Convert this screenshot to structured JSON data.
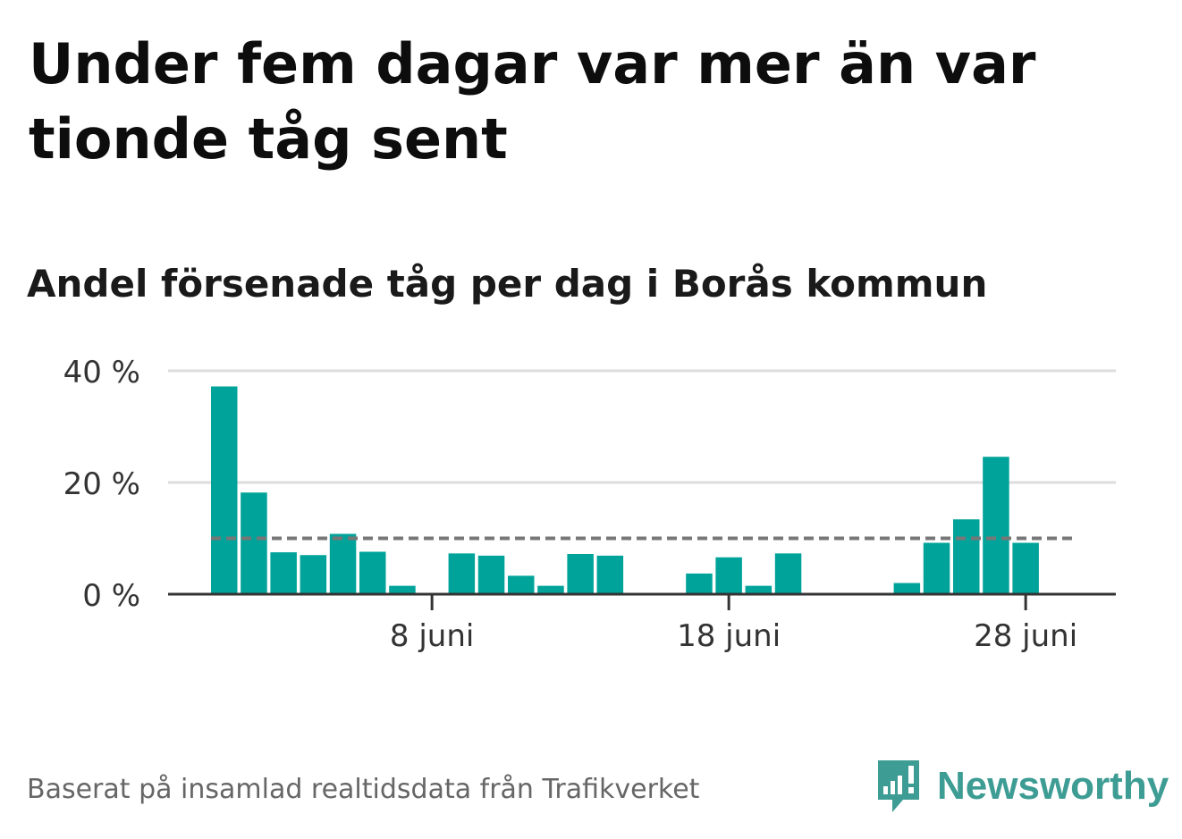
{
  "title": "Under fem dagar var mer än var tionde tåg sent",
  "subtitle": "Andel försenade tåg per dag i Borås kommun",
  "source": "Baserat på insamlad realtidsdata från Trafikverket",
  "logo": {
    "text": "Newsworthy",
    "icon": "newsworthy-chart-bubble-icon",
    "color": "#3d9c93"
  },
  "colors": {
    "bar": "#00a39a",
    "reference": "#777777",
    "grid": "#dddddd",
    "axis": "#333333"
  },
  "chart_data": {
    "type": "bar",
    "x": [
      "2024-06-01",
      "2024-06-02",
      "2024-06-03",
      "2024-06-04",
      "2024-06-05",
      "2024-06-06",
      "2024-06-07",
      "2024-06-08",
      "2024-06-09",
      "2024-06-10",
      "2024-06-11",
      "2024-06-12",
      "2024-06-13",
      "2024-06-14",
      "2024-06-15",
      "2024-06-16",
      "2024-06-17",
      "2024-06-18",
      "2024-06-19",
      "2024-06-20",
      "2024-06-21",
      "2024-06-22",
      "2024-06-23",
      "2024-06-24",
      "2024-06-25",
      "2024-06-26",
      "2024-06-27",
      "2024-06-28",
      "2024-06-29"
    ],
    "values": [
      37.2,
      18.2,
      7.5,
      7.0,
      10.8,
      7.6,
      1.5,
      0,
      7.3,
      6.9,
      3.3,
      1.5,
      7.2,
      6.9,
      0,
      0,
      3.7,
      6.6,
      1.5,
      7.3,
      0,
      0,
      0,
      2.0,
      9.2,
      13.4,
      24.6,
      9.2,
      0
    ],
    "reference_line": {
      "value": 10,
      "style": "dashed"
    },
    "ylim": [
      0,
      40
    ],
    "yticks": [
      0,
      20,
      40
    ],
    "ytick_labels": [
      "0 %",
      "20 %",
      "40 %"
    ],
    "xticks": [
      "8 juni",
      "18 juni",
      "28 juni"
    ],
    "xtick_dates": [
      "2024-06-08",
      "2024-06-18",
      "2024-06-28"
    ],
    "grid": true
  }
}
